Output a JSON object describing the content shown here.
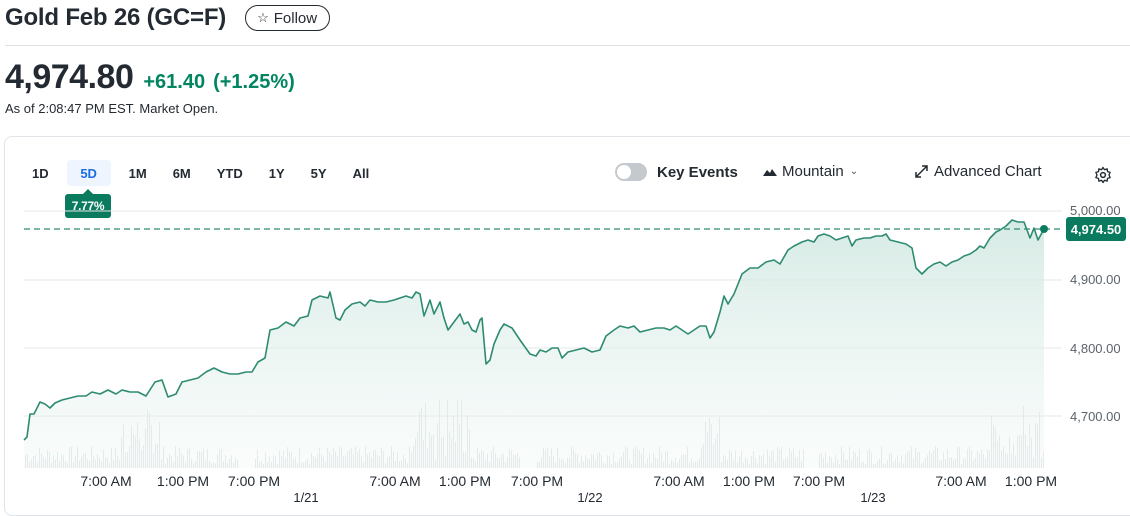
{
  "header": {
    "title": "Gold Feb 26 (GC=F)",
    "follow_label": "Follow",
    "follow_icon": "star-outline-icon"
  },
  "quote": {
    "price": "4,974.80",
    "change": "+61.40",
    "change_pct": "(+1.25%)",
    "as_of": "As of 2:08:47 PM EST. Market Open.",
    "color_positive": "#008561"
  },
  "toolbar": {
    "ranges": [
      "1D",
      "5D",
      "1M",
      "6M",
      "YTD",
      "1Y",
      "5Y",
      "All"
    ],
    "active_range": "5D",
    "range_change_tooltip": "7.77%",
    "key_events_label": "Key Events",
    "key_events_on": false,
    "chart_type_label": "Mountain",
    "advanced_chart_label": "Advanced Chart",
    "settings_icon": "gear-icon"
  },
  "chart_data": {
    "type": "area",
    "title": "Gold Feb 26 (GC=F) 5D",
    "ylim": [
      4640,
      5020
    ],
    "yticks": [
      "5,000.00",
      "4,900.00",
      "4,800.00",
      "4,700.00"
    ],
    "current_price_label": "4,974.50",
    "reference_line": 4974.5,
    "x_tick_labels": [
      "7:00 AM",
      "1:00 PM",
      "7:00 PM",
      "7:00 AM",
      "1:00 PM",
      "7:00 PM",
      "7:00 AM",
      "1:00 PM",
      "7:00 PM",
      "7:00 AM",
      "1:00 PM"
    ],
    "date_labels": [
      "1/21",
      "1/22",
      "1/23"
    ],
    "grid": true,
    "line_color": "#2e8b72",
    "approx_series": [
      {
        "x": "start",
        "y": 4666
      },
      {
        "x": "1/20 7:00 AM",
        "y": 4708
      },
      {
        "x": "1/20 1:00 PM",
        "y": 4723
      },
      {
        "x": "1/20 7:00 PM",
        "y": 4745
      },
      {
        "x": "1/21 open",
        "y": 4820
      },
      {
        "x": "1/21 7:00 AM",
        "y": 4872
      },
      {
        "x": "1/21 1:00 PM",
        "y": 4855
      },
      {
        "x": "1/21 low",
        "y": 4775
      },
      {
        "x": "1/21 7:00 PM",
        "y": 4795
      },
      {
        "x": "1/22 7:00 AM",
        "y": 4830
      },
      {
        "x": "1/22 1:00 PM",
        "y": 4895
      },
      {
        "x": "1/22 7:00 PM",
        "y": 4960
      },
      {
        "x": "1/23 open",
        "y": 4965
      },
      {
        "x": "1/23 low",
        "y": 4910
      },
      {
        "x": "1/23 7:00 AM",
        "y": 4950
      },
      {
        "x": "1/23 high",
        "y": 4990
      },
      {
        "x": "last",
        "y": 4974.5
      }
    ],
    "volume_shown": true
  }
}
